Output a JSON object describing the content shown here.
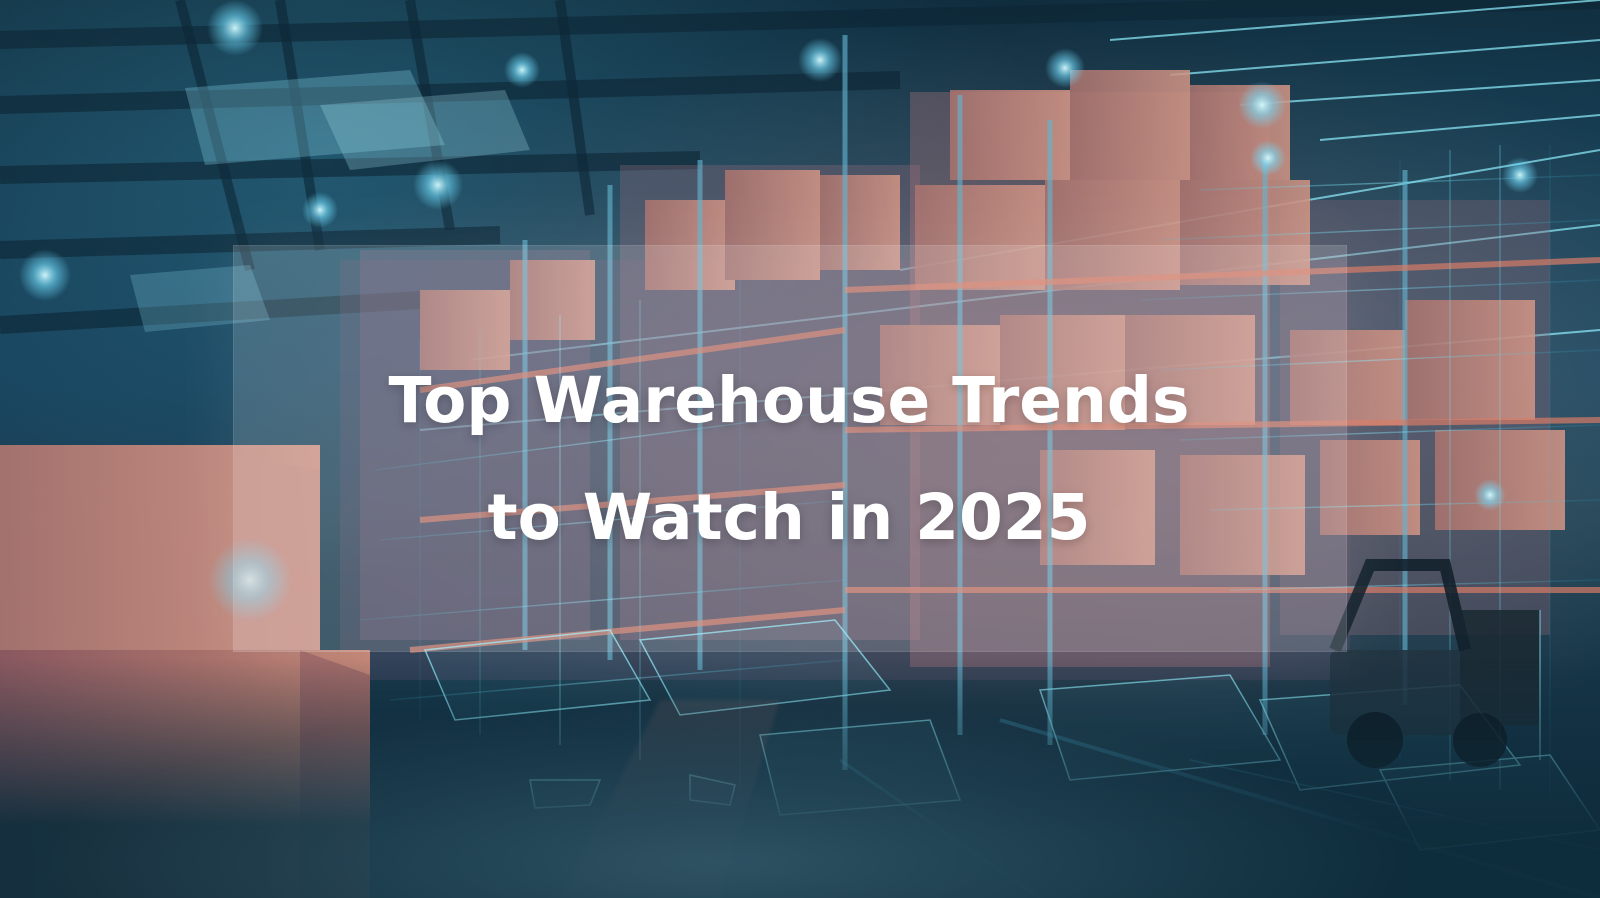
{
  "banner": {
    "title_line_1": "Top Warehouse Trends",
    "title_line_2": "to Watch in 2025",
    "icon": "warehouse-hologram-icon",
    "colors": {
      "background": "#153b55",
      "title": "#ffffff",
      "hologram": "#6fe5ff",
      "boxes": "#c88775"
    }
  }
}
